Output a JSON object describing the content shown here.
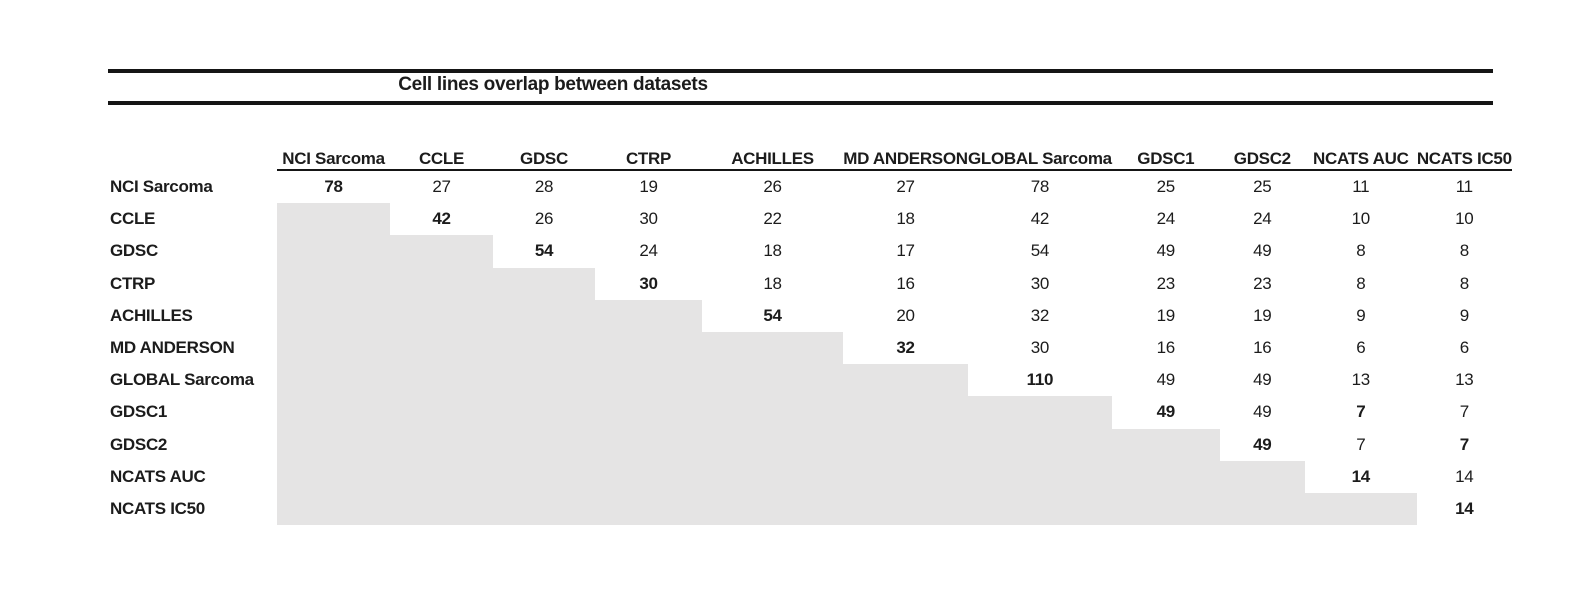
{
  "title": "Cell lines overlap between datasets",
  "colors": {
    "text": "#1c1c1c",
    "rule": "#151515",
    "shade": "#e5e4e4",
    "background": "#ffffff"
  },
  "chart_data": {
    "type": "table",
    "title": "Cell lines overlap between datasets",
    "column_headers": [
      "NCI Sarcoma",
      "CCLE",
      "GDSC",
      "CTRP",
      "ACHILLES",
      "MD ANDERSON",
      "GLOBAL Sarcoma",
      "GDSC1",
      "GDSC2",
      "NCATS AUC",
      "NCATS IC50"
    ],
    "row_headers": [
      "NCI Sarcoma",
      "CCLE",
      "GDSC",
      "CTRP",
      "ACHILLES",
      "MD ANDERSON",
      "GLOBAL Sarcoma",
      "GDSC1",
      "GDSC2",
      "NCATS AUC",
      "NCATS IC50"
    ],
    "matrix": [
      [
        78,
        27,
        28,
        19,
        26,
        27,
        78,
        25,
        25,
        11,
        11
      ],
      [
        null,
        42,
        26,
        30,
        22,
        18,
        42,
        24,
        24,
        10,
        10
      ],
      [
        null,
        null,
        54,
        24,
        18,
        17,
        54,
        49,
        49,
        8,
        8
      ],
      [
        null,
        null,
        null,
        30,
        18,
        16,
        30,
        23,
        23,
        8,
        8
      ],
      [
        null,
        null,
        null,
        null,
        54,
        20,
        32,
        19,
        19,
        9,
        9
      ],
      [
        null,
        null,
        null,
        null,
        null,
        32,
        30,
        16,
        16,
        6,
        6
      ],
      [
        null,
        null,
        null,
        null,
        null,
        null,
        110,
        49,
        49,
        13,
        13
      ],
      [
        null,
        null,
        null,
        null,
        null,
        null,
        null,
        49,
        49,
        7,
        7
      ],
      [
        null,
        null,
        null,
        null,
        null,
        null,
        null,
        null,
        49,
        7,
        7
      ],
      [
        null,
        null,
        null,
        null,
        null,
        null,
        null,
        null,
        null,
        14,
        14
      ],
      [
        null,
        null,
        null,
        null,
        null,
        null,
        null,
        null,
        null,
        null,
        14
      ]
    ],
    "diagonal_bold": true,
    "extra_bold_cells": [
      [
        7,
        9
      ],
      [
        8,
        10
      ]
    ],
    "lower_triangle": "shaded gray, empty"
  }
}
